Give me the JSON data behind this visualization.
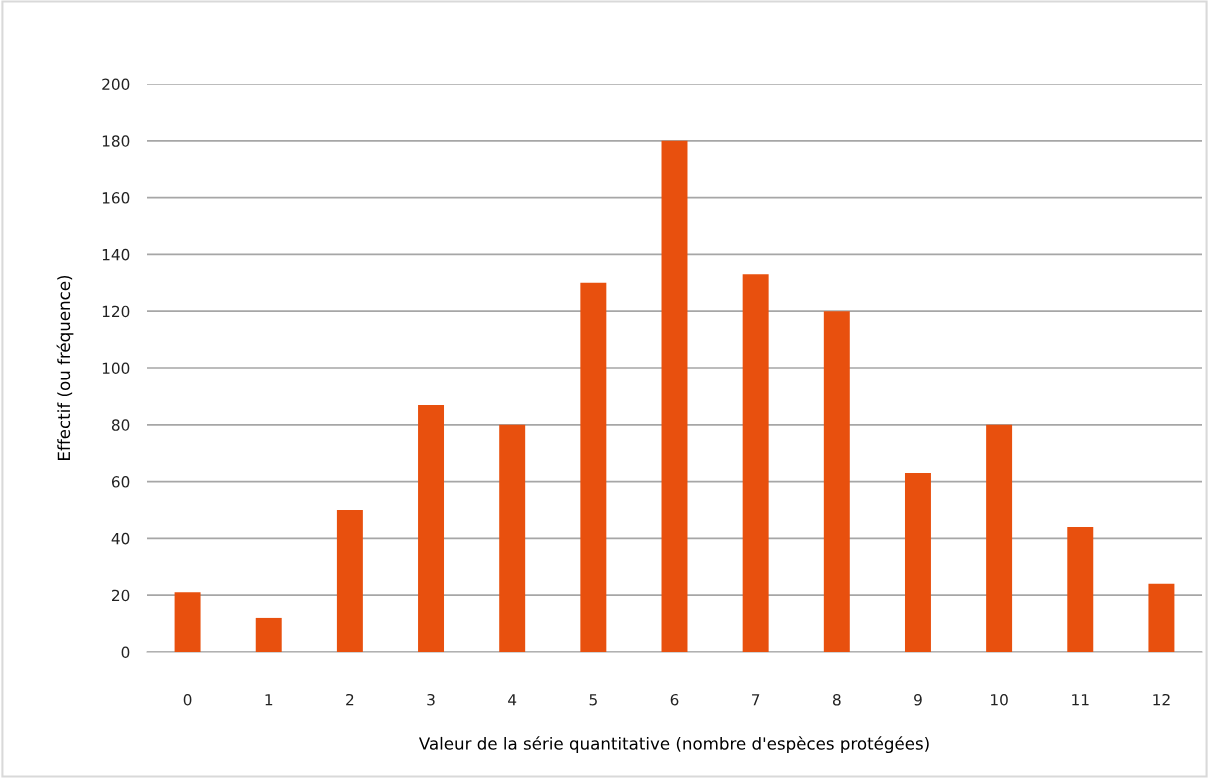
{
  "chart_data": {
    "type": "bar",
    "xlabel": "Valeur de la série quantitative (nombre d'espèces protégées)",
    "ylabel": "Effectif (ou fréquence)",
    "categories": [
      "0",
      "1",
      "2",
      "3",
      "4",
      "5",
      "6",
      "7",
      "8",
      "9",
      "10",
      "11",
      "12"
    ],
    "values": [
      21,
      12,
      50,
      87,
      80,
      130,
      180,
      133,
      120,
      63,
      80,
      44,
      24
    ],
    "color": "#e8500e",
    "ylim": [
      0,
      200
    ],
    "yticks": [
      0,
      20,
      40,
      60,
      80,
      100,
      120,
      140,
      160,
      180,
      200
    ],
    "grid": "y",
    "legend": false
  }
}
